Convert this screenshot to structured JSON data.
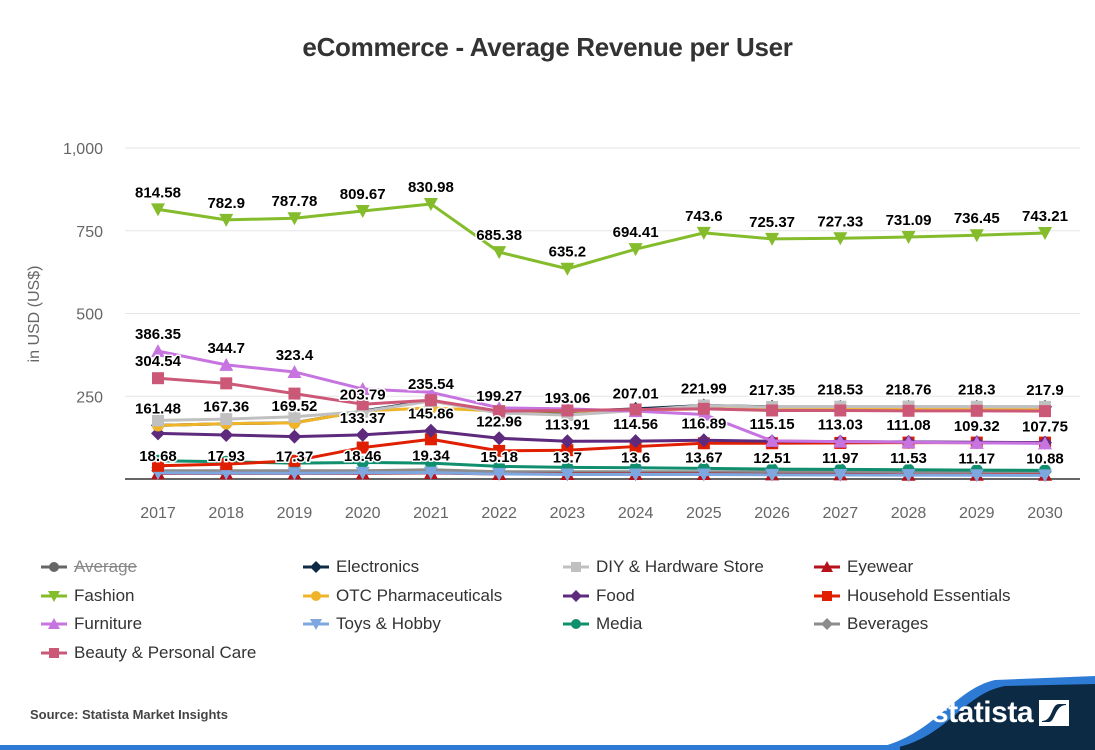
{
  "chart_data": {
    "type": "line",
    "title": "eCommerce - Average Revenue per User",
    "xlabel": "",
    "ylabel": "in USD (US$)",
    "ylim": [
      0,
      1000
    ],
    "yticks": [
      250,
      500,
      750,
      1000
    ],
    "ytick_labels": [
      "250",
      "500",
      "750",
      "1,000"
    ],
    "grid": true,
    "legend_position": "bottom",
    "x": [
      "2017",
      "2018",
      "2019",
      "2020",
      "2021",
      "2022",
      "2023",
      "2024",
      "2025",
      "2026",
      "2027",
      "2028",
      "2029",
      "2030"
    ],
    "series": [
      {
        "name": "Average",
        "color": "#666666",
        "marker": "circle",
        "hidden": true,
        "values": []
      },
      {
        "name": "Electronics",
        "color": "#0f2a44",
        "marker": "diamond",
        "hidden": false,
        "values": [
          162,
          167,
          170,
          205,
          238,
          200,
          203,
          212,
          222,
          218,
          218,
          218,
          218,
          218
        ]
      },
      {
        "name": "DIY & Hardware Store",
        "color": "#c0c0c0",
        "marker": "square",
        "hidden": false,
        "values": [
          177,
          181,
          188,
          203.79,
          235.54,
          199.27,
          193.06,
          207.01,
          221.99,
          217.35,
          218.53,
          218.76,
          218.3,
          217.9
        ]
      },
      {
        "name": "Eyewear",
        "color": "#b5121b",
        "marker": "triangle",
        "hidden": false,
        "values": [
          17,
          17,
          17,
          17,
          18,
          15,
          15,
          15,
          15,
          14,
          14,
          13,
          13,
          13
        ]
      },
      {
        "name": "Fashion",
        "color": "#84bc2b",
        "marker": "triangle-down",
        "hidden": false,
        "values": [
          814.58,
          782.9,
          787.78,
          809.67,
          830.98,
          685.38,
          635.2,
          694.41,
          743.6,
          725.37,
          727.33,
          731.09,
          736.45,
          743.21
        ]
      },
      {
        "name": "OTC Pharmaceuticals",
        "color": "#f0b429",
        "marker": "circle",
        "hidden": false,
        "values": [
          161.48,
          167.36,
          169.52,
          205,
          215,
          205,
          205,
          208,
          212,
          210,
          210,
          210,
          210,
          210
        ]
      },
      {
        "name": "Food",
        "color": "#5e2a7e",
        "marker": "diamond",
        "hidden": false,
        "values": [
          138,
          133,
          128,
          133.37,
          145.86,
          122.96,
          113.91,
          114.56,
          116.89,
          114,
          113,
          112,
          111,
          110
        ]
      },
      {
        "name": "Household Essentials",
        "color": "#e01e00",
        "marker": "square",
        "hidden": false,
        "values": [
          40,
          45,
          55,
          95,
          120,
          85,
          87,
          98,
          108,
          108,
          109,
          110,
          110,
          110
        ]
      },
      {
        "name": "Furniture",
        "color": "#c774e0",
        "marker": "triangle",
        "hidden": false,
        "values": [
          386.35,
          344.7,
          323.4,
          272,
          262,
          215,
          212,
          205,
          195,
          115.15,
          113.03,
          111.08,
          109.32,
          107.75
        ]
      },
      {
        "name": "Toys & Hobby",
        "color": "#7ea7e0",
        "marker": "triangle-down",
        "hidden": false,
        "values": [
          18.68,
          17.93,
          17.37,
          18.46,
          19.34,
          15.18,
          13.7,
          13.6,
          13.67,
          12.51,
          11.97,
          11.53,
          11.17,
          10.88
        ]
      },
      {
        "name": "Media",
        "color": "#0f8f6e",
        "marker": "circle",
        "hidden": false,
        "values": [
          55,
          52,
          48,
          50,
          48,
          38,
          35,
          34,
          32,
          30,
          29,
          28,
          27,
          26
        ]
      },
      {
        "name": "Beverages",
        "color": "#8c8c8c",
        "marker": "diamond",
        "hidden": false,
        "values": [
          25,
          25,
          25,
          25,
          28,
          22,
          22,
          22,
          22,
          22,
          22,
          22,
          22,
          22
        ]
      },
      {
        "name": "Beauty & Personal Care",
        "color": "#cc5878",
        "marker": "square",
        "hidden": false,
        "values": [
          304.54,
          289,
          258,
          226,
          238,
          205,
          207,
          210,
          212,
          207,
          207,
          206,
          206,
          205
        ]
      }
    ],
    "data_labels": [
      {
        "series": "Fashion",
        "x": "2017",
        "text": "814.58"
      },
      {
        "series": "Fashion",
        "x": "2018",
        "text": "782.9"
      },
      {
        "series": "Fashion",
        "x": "2019",
        "text": "787.78"
      },
      {
        "series": "Fashion",
        "x": "2020",
        "text": "809.67"
      },
      {
        "series": "Fashion",
        "x": "2021",
        "text": "830.98"
      },
      {
        "series": "Fashion",
        "x": "2022",
        "text": "685.38"
      },
      {
        "series": "Fashion",
        "x": "2023",
        "text": "635.2"
      },
      {
        "series": "Fashion",
        "x": "2024",
        "text": "694.41"
      },
      {
        "series": "Fashion",
        "x": "2025",
        "text": "743.6"
      },
      {
        "series": "Fashion",
        "x": "2026",
        "text": "725.37"
      },
      {
        "series": "Fashion",
        "x": "2027",
        "text": "727.33"
      },
      {
        "series": "Fashion",
        "x": "2028",
        "text": "731.09"
      },
      {
        "series": "Fashion",
        "x": "2029",
        "text": "736.45"
      },
      {
        "series": "Fashion",
        "x": "2030",
        "text": "743.21"
      },
      {
        "series": "Furniture",
        "x": "2017",
        "text": "386.35"
      },
      {
        "series": "Furniture",
        "x": "2018",
        "text": "344.7"
      },
      {
        "series": "Furniture",
        "x": "2019",
        "text": "323.4"
      },
      {
        "series": "Beauty & Personal Care",
        "x": "2017",
        "text": "304.54"
      },
      {
        "series": "DIY & Hardware Store",
        "x": "2020",
        "text": "203.79"
      },
      {
        "series": "DIY & Hardware Store",
        "x": "2021",
        "text": "235.54"
      },
      {
        "series": "DIY & Hardware Store",
        "x": "2022",
        "text": "199.27"
      },
      {
        "series": "DIY & Hardware Store",
        "x": "2023",
        "text": "193.06"
      },
      {
        "series": "DIY & Hardware Store",
        "x": "2024",
        "text": "207.01"
      },
      {
        "series": "DIY & Hardware Store",
        "x": "2025",
        "text": "221.99"
      },
      {
        "series": "DIY & Hardware Store",
        "x": "2026",
        "text": "217.35"
      },
      {
        "series": "DIY & Hardware Store",
        "x": "2027",
        "text": "218.53"
      },
      {
        "series": "DIY & Hardware Store",
        "x": "2028",
        "text": "218.76"
      },
      {
        "series": "DIY & Hardware Store",
        "x": "2029",
        "text": "218.3"
      },
      {
        "series": "DIY & Hardware Store",
        "x": "2030",
        "text": "217.9"
      },
      {
        "series": "OTC Pharmaceuticals",
        "x": "2017",
        "text": "161.48"
      },
      {
        "series": "OTC Pharmaceuticals",
        "x": "2018",
        "text": "167.36"
      },
      {
        "series": "OTC Pharmaceuticals",
        "x": "2019",
        "text": "169.52"
      },
      {
        "series": "Food",
        "x": "2020",
        "text": "133.37"
      },
      {
        "series": "Food",
        "x": "2021",
        "text": "145.86"
      },
      {
        "series": "Food",
        "x": "2022",
        "text": "122.96"
      },
      {
        "series": "Food",
        "x": "2023",
        "text": "113.91"
      },
      {
        "series": "Food",
        "x": "2024",
        "text": "114.56"
      },
      {
        "series": "Food",
        "x": "2025",
        "text": "116.89"
      },
      {
        "series": "Furniture",
        "x": "2026",
        "text": "115.15"
      },
      {
        "series": "Furniture",
        "x": "2027",
        "text": "113.03"
      },
      {
        "series": "Furniture",
        "x": "2028",
        "text": "111.08"
      },
      {
        "series": "Furniture",
        "x": "2029",
        "text": "109.32"
      },
      {
        "series": "Furniture",
        "x": "2030",
        "text": "107.75"
      },
      {
        "series": "Toys & Hobby",
        "x": "2017",
        "text": "18.68"
      },
      {
        "series": "Toys & Hobby",
        "x": "2018",
        "text": "17.93"
      },
      {
        "series": "Toys & Hobby",
        "x": "2019",
        "text": "17.37"
      },
      {
        "series": "Toys & Hobby",
        "x": "2020",
        "text": "18.46"
      },
      {
        "series": "Toys & Hobby",
        "x": "2021",
        "text": "19.34"
      },
      {
        "series": "Toys & Hobby",
        "x": "2022",
        "text": "15.18"
      },
      {
        "series": "Toys & Hobby",
        "x": "2023",
        "text": "13.7"
      },
      {
        "series": "Toys & Hobby",
        "x": "2024",
        "text": "13.6"
      },
      {
        "series": "Toys & Hobby",
        "x": "2025",
        "text": "13.67"
      },
      {
        "series": "Toys & Hobby",
        "x": "2026",
        "text": "12.51"
      },
      {
        "series": "Toys & Hobby",
        "x": "2027",
        "text": "11.97"
      },
      {
        "series": "Toys & Hobby",
        "x": "2028",
        "text": "11.53"
      },
      {
        "series": "Toys & Hobby",
        "x": "2029",
        "text": "11.17"
      },
      {
        "series": "Toys & Hobby",
        "x": "2030",
        "text": "10.88"
      }
    ]
  },
  "footer": {
    "source": "Source: Statista Market Insights",
    "brand": "statista",
    "brand_dark": "#0c2a43",
    "brand_accent": "#2e7bd6"
  }
}
